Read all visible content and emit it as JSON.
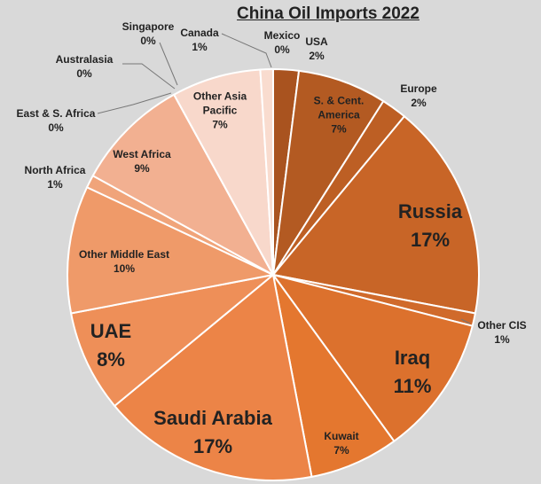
{
  "chart_data": {
    "type": "pie",
    "title": "China Oil Imports 2022",
    "categories": [
      "Mexico",
      "USA",
      "S. & Cent. America",
      "Europe",
      "Russia",
      "Other CIS",
      "Iraq",
      "Kuwait",
      "Saudi Arabia",
      "UAE",
      "Other Middle East",
      "North Africa",
      "West Africa",
      "East & S. Africa",
      "Australasia",
      "Singapore",
      "Other Asia Pacific",
      "Canada"
    ],
    "values": [
      0,
      2,
      7,
      2,
      17,
      1,
      11,
      7,
      17,
      8,
      10,
      1,
      9,
      0,
      0,
      0,
      7,
      1
    ],
    "value_labels": [
      "0%",
      "2%",
      "7%",
      "2%",
      "17%",
      "1%",
      "11%",
      "7%",
      "17%",
      "8%",
      "10%",
      "1%",
      "9%",
      "0%",
      "0%",
      "0%",
      "7%",
      "1%"
    ],
    "colors": [
      "#9c4a1f",
      "#a9531f",
      "#b35a22",
      "#bd5f24",
      "#c86527",
      "#d06a2b",
      "#dc712d",
      "#e4772f",
      "#ec8447",
      "#ee8f58",
      "#ef9a69",
      "#f0a47a",
      "#f2b091",
      "#f3b99c",
      "#f5c2a8",
      "#f6c9b2",
      "#f8d8cb",
      "#f9dccf"
    ]
  }
}
